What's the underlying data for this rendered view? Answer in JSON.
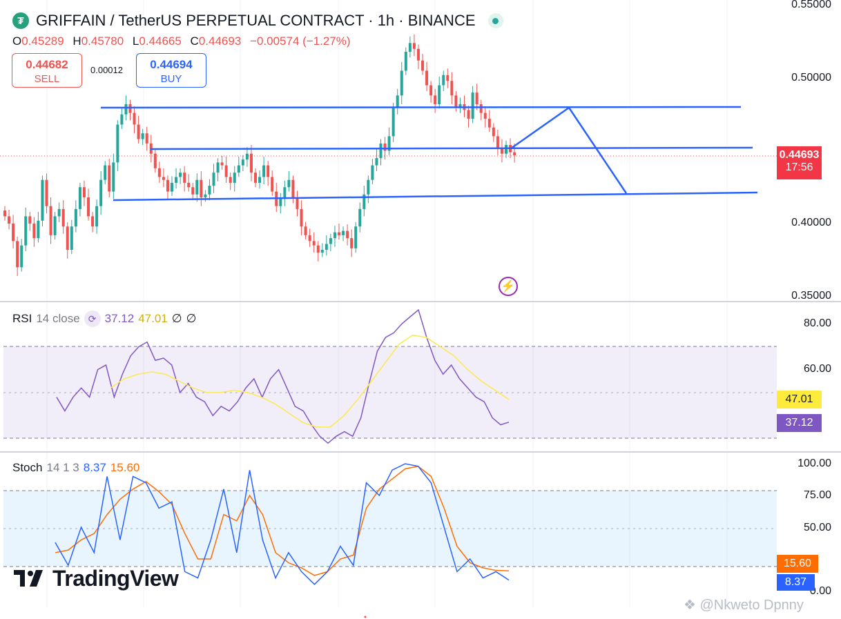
{
  "header": {
    "title": "GRIFFAIN / TetherUS PERPETUAL CONTRACT · 1h · BINANCE",
    "logo_glyph": "₮",
    "ohlc": {
      "o_label": "O",
      "o": "0.45289",
      "h_label": "H",
      "h": "0.45780",
      "l_label": "L",
      "l": "0.44665",
      "c_label": "C",
      "c": "0.44693",
      "change": "−0.00574 (−1.27%)"
    }
  },
  "trade": {
    "sell_price": "0.44682",
    "sell_label": "SELL",
    "spread": "0.00012",
    "buy_price": "0.44694",
    "buy_label": "BUY"
  },
  "price_axis": [
    "0.55000",
    "0.50000",
    "0.40000",
    "0.35000"
  ],
  "last_price": {
    "value": "0.44693",
    "countdown": "17:56"
  },
  "rsi": {
    "title": "RSI",
    "params": "14 close",
    "value": "37.12",
    "ma": "47.01",
    "extra1": "∅",
    "extra2": "∅",
    "axis": [
      "80.00",
      "60.00"
    ]
  },
  "stoch": {
    "title": "Stoch",
    "params": "14 1 3",
    "k": "8.37",
    "d": "15.60",
    "axis": [
      "100.00",
      "75.00",
      "50.00",
      "0.00"
    ]
  },
  "branding": {
    "tv_name": "TradingView",
    "watermark": "@Nkweto Dpnny"
  },
  "colors": {
    "up": "#26a69a",
    "down": "#ef5350",
    "trendline": "#2962ff",
    "rsi": "#7e57c2",
    "rsi_ma": "#fbe94f",
    "stoch_k": "#2962ff",
    "stoch_d": "#ff6d00"
  },
  "chart_data": [
    {
      "type": "candlestick",
      "title": "GRIFFAIN / TetherUS PERPETUAL CONTRACT · 1h · BINANCE",
      "ylim": [
        0.35,
        0.55
      ],
      "close": [
        0.405,
        0.4,
        0.388,
        0.37,
        0.385,
        0.405,
        0.4,
        0.39,
        0.402,
        0.43,
        0.412,
        0.392,
        0.405,
        0.41,
        0.398,
        0.382,
        0.398,
        0.41,
        0.425,
        0.418,
        0.405,
        0.398,
        0.412,
        0.43,
        0.44,
        0.422,
        0.442,
        0.468,
        0.475,
        0.482,
        0.476,
        0.468,
        0.458,
        0.462,
        0.455,
        0.448,
        0.438,
        0.432,
        0.43,
        0.422,
        0.428,
        0.432,
        0.435,
        0.428,
        0.425,
        0.42,
        0.43,
        0.418,
        0.42,
        0.426,
        0.435,
        0.442,
        0.44,
        0.432,
        0.428,
        0.435,
        0.44,
        0.444,
        0.448,
        0.435,
        0.428,
        0.432,
        0.44,
        0.432,
        0.422,
        0.412,
        0.418,
        0.425,
        0.43,
        0.418,
        0.41,
        0.398,
        0.392,
        0.388,
        0.385,
        0.38,
        0.382,
        0.386,
        0.39,
        0.394,
        0.392,
        0.395,
        0.39,
        0.383,
        0.398,
        0.41,
        0.42,
        0.43,
        0.44,
        0.445,
        0.455,
        0.45,
        0.46,
        0.48,
        0.488,
        0.505,
        0.518,
        0.524,
        0.52,
        0.512,
        0.505,
        0.495,
        0.488,
        0.482,
        0.495,
        0.502,
        0.498,
        0.488,
        0.48,
        0.482,
        0.478,
        0.472,
        0.49,
        0.482,
        0.476,
        0.472,
        0.466,
        0.46,
        0.452,
        0.448,
        0.454,
        0.449,
        0.4469
      ]
    },
    {
      "type": "line",
      "title": "RSI",
      "ylim": [
        20,
        90
      ],
      "series": [
        {
          "name": "RSI",
          "values": [
            48,
            42,
            48,
            52,
            48,
            60,
            62,
            48,
            58,
            66,
            70,
            72,
            64,
            65,
            62,
            50,
            54,
            48,
            46,
            40,
            44,
            42,
            46,
            52,
            56,
            48,
            56,
            60,
            52,
            44,
            42,
            36,
            31,
            28,
            31,
            33,
            31,
            39,
            54,
            68,
            74,
            76,
            80,
            83,
            86,
            74,
            64,
            58,
            62,
            56,
            52,
            48,
            46,
            39,
            36,
            37.12
          ]
        },
        {
          "name": "MA",
          "values": [
            52,
            56,
            58,
            59,
            58,
            55,
            52,
            50,
            50,
            51,
            50,
            48,
            45,
            41,
            37,
            35,
            35,
            40,
            47,
            55,
            63,
            71,
            75,
            74,
            70,
            66,
            60,
            55,
            51,
            47.01
          ]
        }
      ]
    },
    {
      "type": "line",
      "title": "Stoch",
      "ylim": [
        0,
        100
      ],
      "series": [
        {
          "name": "%K",
          "values": [
            38,
            20,
            50,
            30,
            90,
            40,
            90,
            85,
            65,
            70,
            15,
            10,
            40,
            80,
            30,
            95,
            40,
            10,
            30,
            15,
            5,
            15,
            35,
            20,
            85,
            75,
            95,
            100,
            98,
            85,
            50,
            15,
            25,
            10,
            15,
            8.37
          ]
        },
        {
          "name": "%D",
          "values": [
            30,
            32,
            40,
            45,
            60,
            72,
            80,
            86,
            78,
            68,
            45,
            25,
            25,
            60,
            55,
            75,
            60,
            30,
            22,
            18,
            12,
            15,
            25,
            28,
            65,
            80,
            88,
            96,
            98,
            90,
            65,
            35,
            22,
            18,
            16,
            15.6
          ]
        }
      ]
    }
  ]
}
